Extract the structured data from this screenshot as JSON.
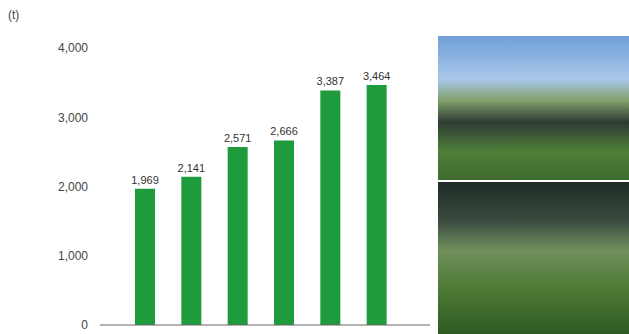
{
  "chart_data": {
    "type": "bar",
    "y_label": "(t)",
    "categories": [
      null,
      null,
      null,
      null,
      null,
      null
    ],
    "values": [
      1969,
      2141,
      2571,
      2666,
      3387,
      3464
    ],
    "value_labels": [
      "1,969",
      "2,141",
      "2,571",
      "2,666",
      "3,387",
      "3,464"
    ],
    "data_labels": true,
    "color": "#1f9a3c",
    "ylim": [
      0,
      4000
    ],
    "yticks": [
      0,
      {
        "value": 1000,
        "label": "1,000"
      },
      {
        "value": 2000,
        "label": "2,000"
      },
      {
        "value": 3000,
        "label": "3,000"
      },
      {
        "value": 4000,
        "label": "4,000"
      }
    ],
    "grid": false
  }
}
